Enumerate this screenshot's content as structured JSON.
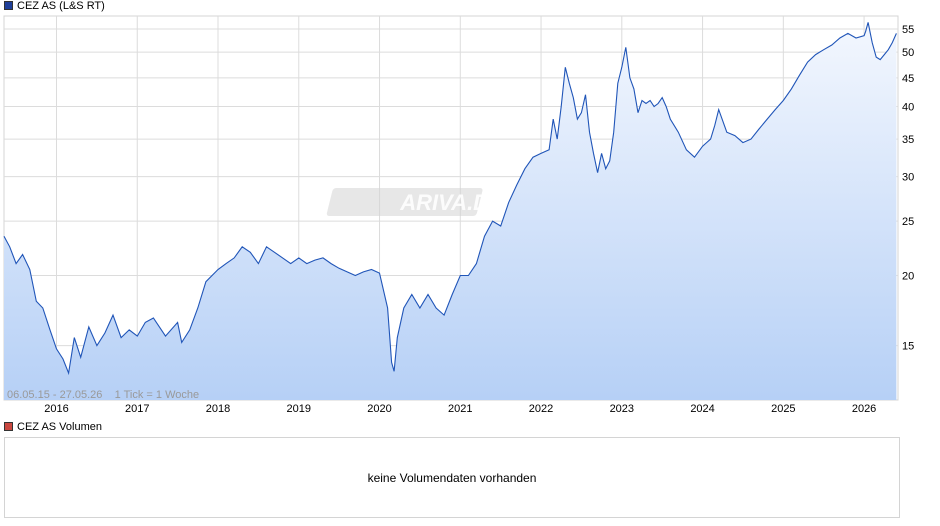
{
  "price_legend": {
    "label": "CEZ AS (L&S RT)",
    "color": "#1f3f99"
  },
  "volume_legend": {
    "label": "CEZ AS Volumen",
    "color": "#c9473f"
  },
  "volume_message": "keine Volumendaten vorhanden",
  "range_info": "06.05.15 - 27.05.26    1 Tick = 1 Woche",
  "watermark": "ARIVA.DE",
  "chart_data": {
    "type": "area",
    "title": "",
    "xlabel": "",
    "ylabel": "",
    "y_scale": "log",
    "ylim": [
      12,
      58
    ],
    "xlim": [
      2015.35,
      2026.42
    ],
    "grid": true,
    "y_ticks": [
      15,
      20,
      25,
      30,
      35,
      40,
      45,
      50,
      55
    ],
    "x_ticks": [
      2016,
      2017,
      2018,
      2019,
      2020,
      2021,
      2022,
      2023,
      2024,
      2025,
      2026
    ],
    "colors": {
      "line": "#2055b8",
      "fill_top": "#f3f7fe",
      "fill_bottom": "#b6d0f6",
      "grid": "#dcdcdc"
    },
    "series": [
      {
        "x": [
          2015.35,
          2015.42,
          2015.5,
          2015.58,
          2015.67,
          2015.75,
          2015.83,
          2015.92,
          2016.0,
          2016.08,
          2016.15,
          2016.22,
          2016.3,
          2016.4,
          2016.5,
          2016.6,
          2016.7,
          2016.8,
          2016.9,
          2017.0,
          2017.1,
          2017.2,
          2017.35,
          2017.5,
          2017.55,
          2017.65,
          2017.75,
          2017.85,
          2018.0,
          2018.1,
          2018.2,
          2018.3,
          2018.4,
          2018.5,
          2018.6,
          2018.7,
          2018.8,
          2018.9,
          2019.0,
          2019.1,
          2019.2,
          2019.3,
          2019.4,
          2019.5,
          2019.6,
          2019.7,
          2019.8,
          2019.9,
          2020.0,
          2020.1,
          2020.15,
          2020.18,
          2020.22,
          2020.3,
          2020.4,
          2020.5,
          2020.6,
          2020.7,
          2020.8,
          2020.9,
          2021.0,
          2021.1,
          2021.2,
          2021.3,
          2021.4,
          2021.5,
          2021.6,
          2021.7,
          2021.8,
          2021.9,
          2022.0,
          2022.1,
          2022.15,
          2022.2,
          2022.25,
          2022.3,
          2022.35,
          2022.4,
          2022.45,
          2022.5,
          2022.55,
          2022.6,
          2022.65,
          2022.7,
          2022.75,
          2022.8,
          2022.85,
          2022.9,
          2022.95,
          2023.0,
          2023.05,
          2023.1,
          2023.15,
          2023.2,
          2023.25,
          2023.3,
          2023.35,
          2023.4,
          2023.45,
          2023.5,
          2023.55,
          2023.6,
          2023.7,
          2023.8,
          2023.9,
          2024.0,
          2024.05,
          2024.1,
          2024.15,
          2024.2,
          2024.3,
          2024.4,
          2024.5,
          2024.6,
          2024.7,
          2024.8,
          2024.9,
          2025.0,
          2025.1,
          2025.2,
          2025.3,
          2025.4,
          2025.5,
          2025.6,
          2025.7,
          2025.8,
          2025.9,
          2026.0,
          2026.02,
          2026.05,
          2026.1,
          2026.15,
          2026.2,
          2026.25,
          2026.3,
          2026.35,
          2026.4
        ],
        "y": [
          23.5,
          22.5,
          21.0,
          21.8,
          20.5,
          18.0,
          17.5,
          16.0,
          14.8,
          14.2,
          13.4,
          15.5,
          14.3,
          16.2,
          15.0,
          15.8,
          17.0,
          15.5,
          16.0,
          15.6,
          16.5,
          16.8,
          15.6,
          16.5,
          15.2,
          16.0,
          17.5,
          19.5,
          20.5,
          21.0,
          21.5,
          22.5,
          22.0,
          21.0,
          22.5,
          22.0,
          21.5,
          21.0,
          21.5,
          21.0,
          21.3,
          21.5,
          21.0,
          20.6,
          20.3,
          20.0,
          20.3,
          20.5,
          20.2,
          17.5,
          14.0,
          13.5,
          15.5,
          17.5,
          18.5,
          17.5,
          18.5,
          17.5,
          17.0,
          18.5,
          20.0,
          20.0,
          21.0,
          23.5,
          25.0,
          24.5,
          27.0,
          29.0,
          31.0,
          32.5,
          33.0,
          33.5,
          38.0,
          35.0,
          40.0,
          47.0,
          44.0,
          41.5,
          38.0,
          39.0,
          42.0,
          36.0,
          33.0,
          30.5,
          33.0,
          31.0,
          32.0,
          36.0,
          44.0,
          47.0,
          51.0,
          45.0,
          43.0,
          39.0,
          41.0,
          40.5,
          41.0,
          40.0,
          40.5,
          41.5,
          40.0,
          38.0,
          36.0,
          33.5,
          32.5,
          34.0,
          34.5,
          35.0,
          37.0,
          39.5,
          36.0,
          35.5,
          34.5,
          35.0,
          36.5,
          38.0,
          39.5,
          41.0,
          43.0,
          45.5,
          48.0,
          49.5,
          50.5,
          51.5,
          53.0,
          54.0,
          53.0,
          53.5,
          54.5,
          56.5,
          52.0,
          49.0,
          48.5,
          49.5,
          50.5,
          52.0,
          54.0
        ]
      }
    ]
  }
}
